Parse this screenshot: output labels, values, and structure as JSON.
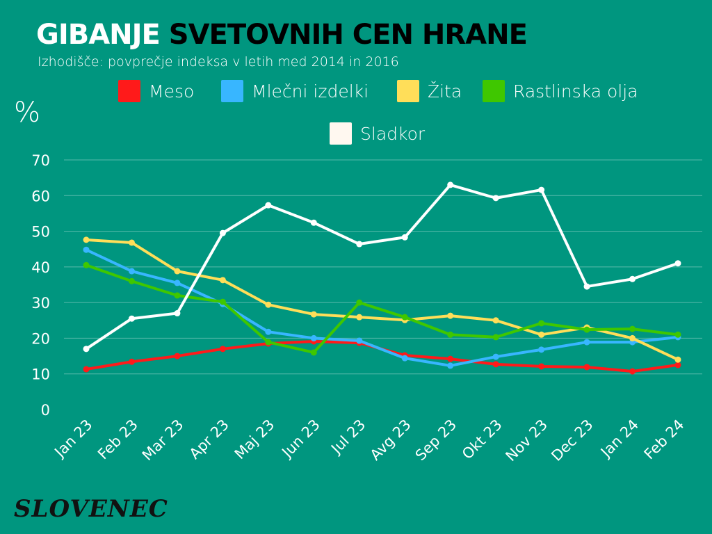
{
  "title_part1": "GIBANJE",
  "title_part2": "SVETOVNIH CEN HRANE",
  "subtitle": "Izhodišče: povprečje indeksa v letih med 2014 in 2016",
  "logo": "SLOVENEC",
  "chart_data": {
    "type": "line",
    "ylabel": "%",
    "ylim": [
      0,
      70
    ],
    "yticks": [
      0,
      10,
      20,
      30,
      40,
      50,
      60,
      70
    ],
    "grid": true,
    "legend_placement": "top",
    "categories": [
      "Jan 23",
      "Feb 23",
      "Mar 23",
      "Apr 23",
      "Maj 23",
      "Jun 23",
      "Jul 23",
      "Avg 23",
      "Sep 23",
      "Okt 23",
      "Nov 23",
      "Dec 23",
      "Jan 24",
      "Feb 24"
    ],
    "series": [
      {
        "name": "Meso",
        "color": "#ff1a1a",
        "values": [
          11.3,
          13.4,
          15,
          17,
          18.5,
          19.1,
          18.7,
          15.2,
          14.2,
          12.7,
          12.1,
          11.9,
          10.7,
          12.5
        ]
      },
      {
        "name": "Mlečni izdelki",
        "color": "#38b6ff",
        "values": [
          44.8,
          38.8,
          35.5,
          29.6,
          21.8,
          20,
          19.3,
          14.4,
          12.3,
          14.8,
          16.8,
          18.9,
          18.9,
          20.3
        ]
      },
      {
        "name": "Žita",
        "color": "#ffde59",
        "values": [
          47.6,
          46.8,
          38.8,
          36.3,
          29.4,
          26.7,
          25.9,
          25.1,
          26.3,
          25,
          21,
          23,
          20,
          14
        ]
      },
      {
        "name": "Rastlinska olja",
        "color": "#3fc700",
        "values": [
          40.5,
          36,
          32,
          30.2,
          18.9,
          16,
          30,
          25.9,
          21,
          20.3,
          24.2,
          22.4,
          22.6,
          21
        ]
      },
      {
        "name": "Sladkor",
        "color": "#ffffff",
        "values": [
          17,
          25.5,
          27,
          49.5,
          57.3,
          52.4,
          46.4,
          48.3,
          63,
          59.3,
          61.6,
          34.5,
          36.6,
          41
        ]
      }
    ]
  }
}
